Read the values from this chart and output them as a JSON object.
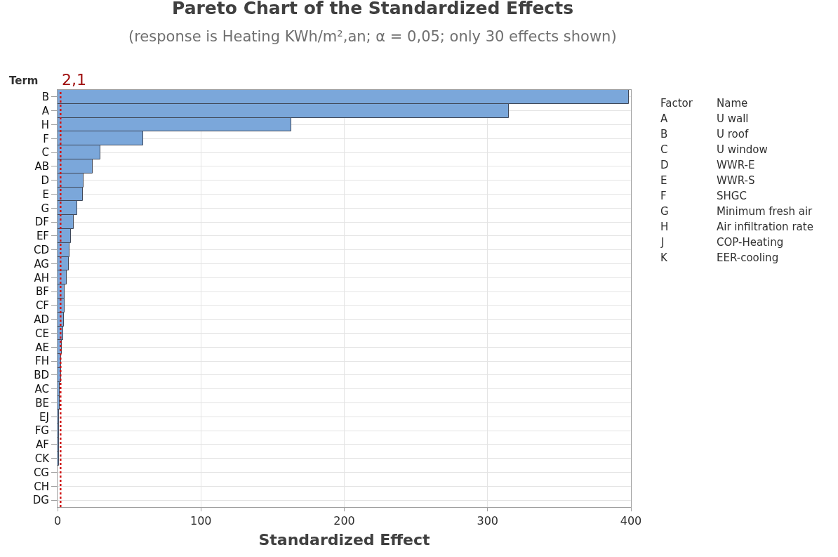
{
  "chart_data": {
    "type": "bar",
    "orientation": "horizontal",
    "title": "Pareto Chart of the Standardized Effects",
    "subtitle": "(response is Heating KWh/m²,an; α = 0,05; only 30 effects shown)",
    "xlabel": "Standardized Effect",
    "ylabel": "Term",
    "categories": [
      "B",
      "A",
      "H",
      "F",
      "C",
      "AB",
      "D",
      "E",
      "G",
      "DF",
      "EF",
      "CD",
      "AG",
      "AH",
      "BF",
      "CF",
      "AD",
      "CE",
      "AE",
      "FH",
      "BD",
      "AC",
      "BE",
      "EJ",
      "FG",
      "AF",
      "CK",
      "CG",
      "CH",
      "DG"
    ],
    "values": [
      398.5,
      315,
      162.9,
      59.5,
      29.7,
      24.6,
      18.3,
      17.5,
      13.7,
      11.1,
      9.5,
      8.2,
      7.7,
      6.4,
      5.0,
      5.0,
      4.6,
      4.1,
      2.8,
      2.3,
      2.4,
      1.6,
      1.6,
      1.0,
      0.8,
      0.8,
      0.8,
      null,
      null,
      null
    ],
    "color": "#7ba7da",
    "xlim": [
      0,
      400
    ],
    "xticks": [
      0,
      100,
      200,
      300,
      400
    ],
    "grid": true,
    "ref_lines": [
      {
        "axis": "x",
        "value": 2.1,
        "label": "2,1",
        "color": "#d01818",
        "line_style": "dotted"
      }
    ],
    "annotations": [
      "Factor",
      "Name",
      "A",
      "U wall",
      "B",
      "U roof",
      "C",
      "U window",
      "D",
      "WWR-E",
      "E",
      "WWR-S",
      "F",
      "SHGC",
      "G",
      "Minimum fresh air",
      "H",
      "Air infiltration rate",
      "J",
      "COP-Heating",
      "K",
      "EER-cooling"
    ]
  }
}
